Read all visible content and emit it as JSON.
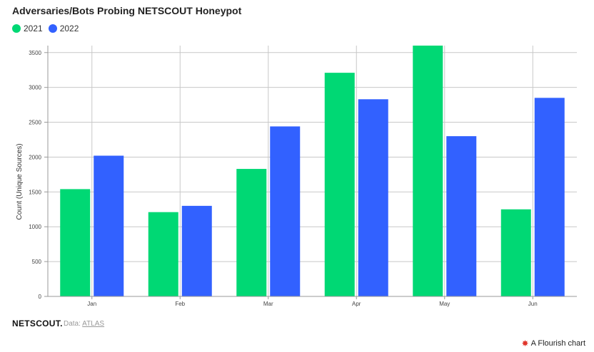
{
  "title": "Adversaries/Bots Probing NETSCOUT Honeypot",
  "legend": [
    {
      "label": "2021",
      "color": "#00d874"
    },
    {
      "label": "2022",
      "color": "#3261ff"
    }
  ],
  "footer": {
    "brand": "NETSCOUT.",
    "source_prefix": "Data: ",
    "source_link": "ATLAS",
    "flourish_label": "A Flourish chart"
  },
  "chart_data": {
    "type": "bar",
    "categories": [
      "Jan",
      "Feb",
      "Mar",
      "Apr",
      "May",
      "Jun"
    ],
    "series": [
      {
        "name": "2021",
        "color": "#00d874",
        "values": [
          1540,
          1210,
          1830,
          3210,
          3600,
          1250
        ]
      },
      {
        "name": "2022",
        "color": "#3261ff",
        "values": [
          2020,
          1300,
          2440,
          2830,
          2300,
          2850
        ]
      }
    ],
    "ylabel": "Count (Unique Sources)",
    "xlabel": "",
    "ylim": [
      0,
      3600
    ],
    "yticks": [
      0,
      500,
      1000,
      1500,
      2000,
      2500,
      3000,
      3500
    ],
    "grid": true,
    "legend_position": "top-left"
  }
}
